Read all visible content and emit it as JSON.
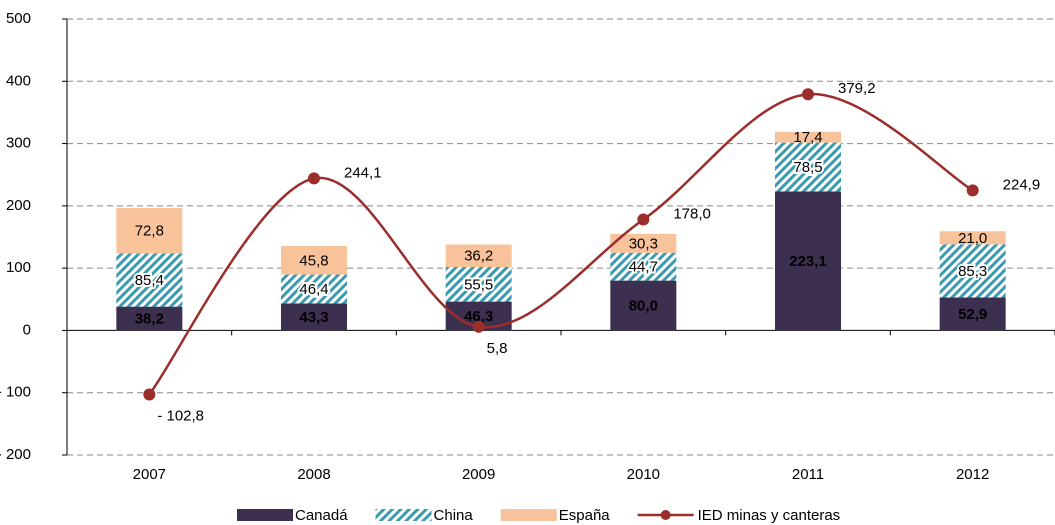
{
  "chart_data": {
    "type": "bar",
    "categories": [
      "2007",
      "2008",
      "2009",
      "2010",
      "2011",
      "2012"
    ],
    "stacked": true,
    "series": [
      {
        "name": "Canadá",
        "type": "bar",
        "color": "#3d2f4f",
        "values": [
          38.2,
          43.3,
          46.3,
          80.0,
          223.1,
          52.9
        ],
        "value_labels": [
          "38,2",
          "43,3",
          "46,3",
          "80,0",
          "223,1",
          "52,9"
        ]
      },
      {
        "name": "China",
        "type": "bar",
        "color": "#3a9ab0",
        "pattern": "hatch",
        "values": [
          85.4,
          46.4,
          55.5,
          44.7,
          78.5,
          85.3
        ],
        "value_labels": [
          "85,4",
          "46,4",
          "55,5",
          "44,7",
          "78,5",
          "85,3"
        ]
      },
      {
        "name": "España",
        "type": "bar",
        "color": "#f8c29a",
        "values": [
          72.8,
          45.8,
          36.2,
          30.3,
          17.4,
          21.0
        ],
        "value_labels": [
          "72,8",
          "45,8",
          "36,2",
          "30,3",
          "17,4",
          "21,0"
        ]
      },
      {
        "name": "IED minas y canteras",
        "type": "line",
        "color": "#9b2d2a",
        "smooth": true,
        "values": [
          -102.8,
          244.1,
          5.8,
          178.0,
          379.2,
          224.9
        ],
        "value_labels": [
          "- 102,8",
          "244,1",
          "5,8",
          "178,0",
          "379,2",
          "224,9"
        ]
      }
    ],
    "ylim": [
      -200,
      500
    ],
    "yticks": [
      {
        "value": -200,
        "label": "- 200"
      },
      {
        "value": -100,
        "label": "- 100"
      },
      0,
      100,
      200,
      300,
      400,
      500
    ],
    "grid": true,
    "legend": "bottom"
  }
}
